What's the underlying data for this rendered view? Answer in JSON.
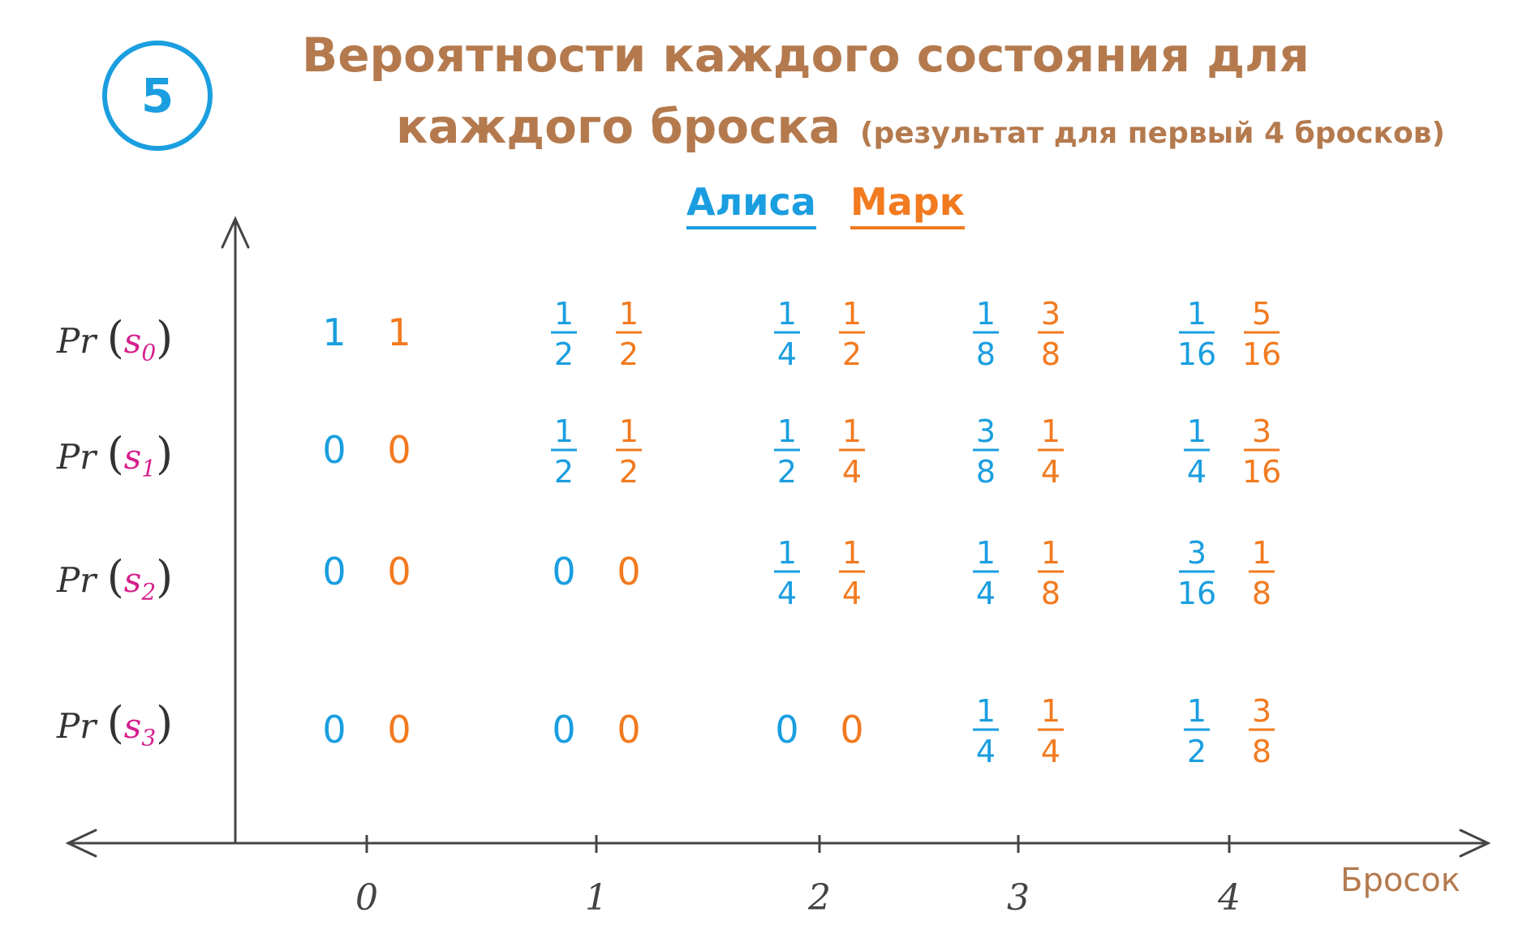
{
  "badge": "5",
  "title": {
    "line1": "Вероятности каждого состояния для",
    "line2": "каждого броска",
    "note": "(результат для первый 4 бросков)"
  },
  "legend": {
    "alice": "Алиса",
    "mark": "Марк",
    "alice_color": "#1a9ee0",
    "mark_color": "#f27a1f"
  },
  "rows": [
    {
      "prefix": "Pr",
      "state": "s",
      "sub": "0"
    },
    {
      "prefix": "Pr",
      "state": "s",
      "sub": "1"
    },
    {
      "prefix": "Pr",
      "state": "s",
      "sub": "2"
    },
    {
      "prefix": "Pr",
      "state": "s",
      "sub": "3"
    }
  ],
  "chart_data": {
    "type": "table",
    "xlabel": "Бросок",
    "x_ticks": [
      "0",
      "1",
      "2",
      "3",
      "4"
    ],
    "series": [
      {
        "name": "Алиса",
        "color": "#1a9ee0",
        "values": [
          [
            "1",
            "1/2",
            "1/4",
            "1/8",
            "1/16"
          ],
          [
            "0",
            "1/2",
            "1/2",
            "3/8",
            "1/4"
          ],
          [
            "0",
            "0",
            "1/4",
            "1/4",
            "3/16"
          ],
          [
            "0",
            "0",
            "0",
            "1/4",
            "1/2"
          ]
        ]
      },
      {
        "name": "Марк",
        "color": "#f27a1f",
        "values": [
          [
            "1",
            "1/2",
            "1/2",
            "3/8",
            "5/16"
          ],
          [
            "0",
            "1/2",
            "1/4",
            "1/4",
            "3/16"
          ],
          [
            "0",
            "0",
            "1/4",
            "1/8",
            "1/8"
          ],
          [
            "0",
            "0",
            "0",
            "1/4",
            "3/8"
          ]
        ]
      }
    ]
  }
}
